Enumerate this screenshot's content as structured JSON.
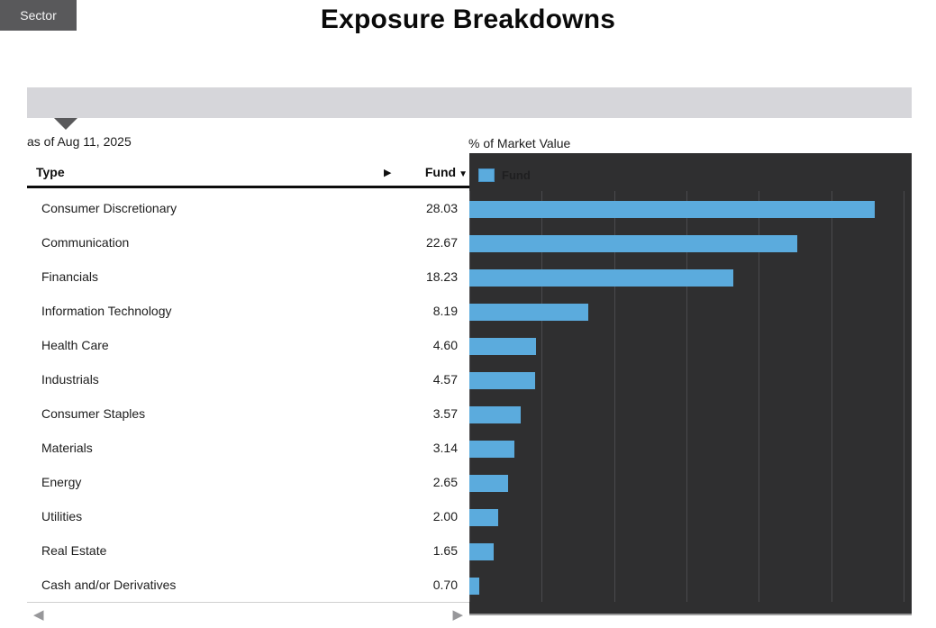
{
  "title": "Exposure Breakdowns",
  "tabs": [
    {
      "label": "Sector",
      "active": true
    }
  ],
  "as_of": "as of Aug 11, 2025",
  "table": {
    "columns": {
      "type": "Type",
      "fund": "Fund"
    },
    "sort_desc_icon": "▼",
    "expand_icon": "▶",
    "scroll_left_icon": "◀",
    "scroll_right_icon": "▶",
    "rows": [
      {
        "type": "Consumer Discretionary",
        "fund": "28.03"
      },
      {
        "type": "Communication",
        "fund": "22.67"
      },
      {
        "type": "Financials",
        "fund": "18.23"
      },
      {
        "type": "Information Technology",
        "fund": "8.19"
      },
      {
        "type": "Health Care",
        "fund": "4.60"
      },
      {
        "type": "Industrials",
        "fund": "4.57"
      },
      {
        "type": "Consumer Staples",
        "fund": "3.57"
      },
      {
        "type": "Materials",
        "fund": "3.14"
      },
      {
        "type": "Energy",
        "fund": "2.65"
      },
      {
        "type": "Utilities",
        "fund": "2.00"
      },
      {
        "type": "Real Estate",
        "fund": "1.65"
      },
      {
        "type": "Cash and/or Derivatives",
        "fund": "0.70"
      }
    ]
  },
  "chart_data": {
    "type": "bar",
    "orientation": "horizontal",
    "title": "% of Market Value",
    "legend": [
      {
        "name": "Fund",
        "color": "#5babdd"
      }
    ],
    "legend_position": "top-left",
    "categories": [
      "Consumer Discretionary",
      "Communication",
      "Financials",
      "Information Technology",
      "Health Care",
      "Industrials",
      "Consumer Staples",
      "Materials",
      "Energy",
      "Utilities",
      "Real Estate",
      "Cash and/or Derivatives"
    ],
    "values": [
      28.03,
      22.67,
      18.23,
      8.19,
      4.6,
      4.57,
      3.57,
      3.14,
      2.65,
      2.0,
      1.65,
      0.7
    ],
    "xlabel": "% of Market Value",
    "ylabel": "",
    "xlim": [
      0,
      30.55
    ],
    "gridline_step": 5,
    "grid": true,
    "background": "#2f2f30",
    "gridline_color": "#4a4a4d",
    "bar_color": "#5babdd"
  },
  "colors": {
    "accent_blue": "#5babdd",
    "chart_background": "#2f2f30",
    "tab_active": "#59595b",
    "tab_bar": "#d6d6da"
  }
}
